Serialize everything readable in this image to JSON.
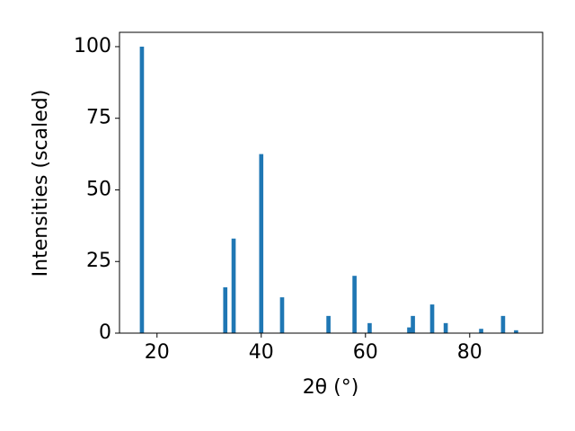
{
  "chart_data": {
    "type": "bar",
    "xlabel": "2θ (°)",
    "ylabel": "Intensities (scaled)",
    "x": [
      17.1,
      33.1,
      34.7,
      40.0,
      44.0,
      52.9,
      57.9,
      60.8,
      68.4,
      69.1,
      72.8,
      75.4,
      82.2,
      86.4,
      88.9
    ],
    "values": [
      100,
      16,
      33,
      62.5,
      12.5,
      6,
      20,
      3.5,
      2,
      6,
      10,
      3.5,
      1.5,
      6,
      1
    ],
    "bar_width": 0.8,
    "color": "#1f77b4",
    "xlim": [
      12.8,
      94.0
    ],
    "xticks": [
      20,
      40,
      60,
      80
    ],
    "ylim": [
      0,
      105
    ],
    "yticks": [
      0,
      25,
      50,
      75,
      100
    ]
  }
}
